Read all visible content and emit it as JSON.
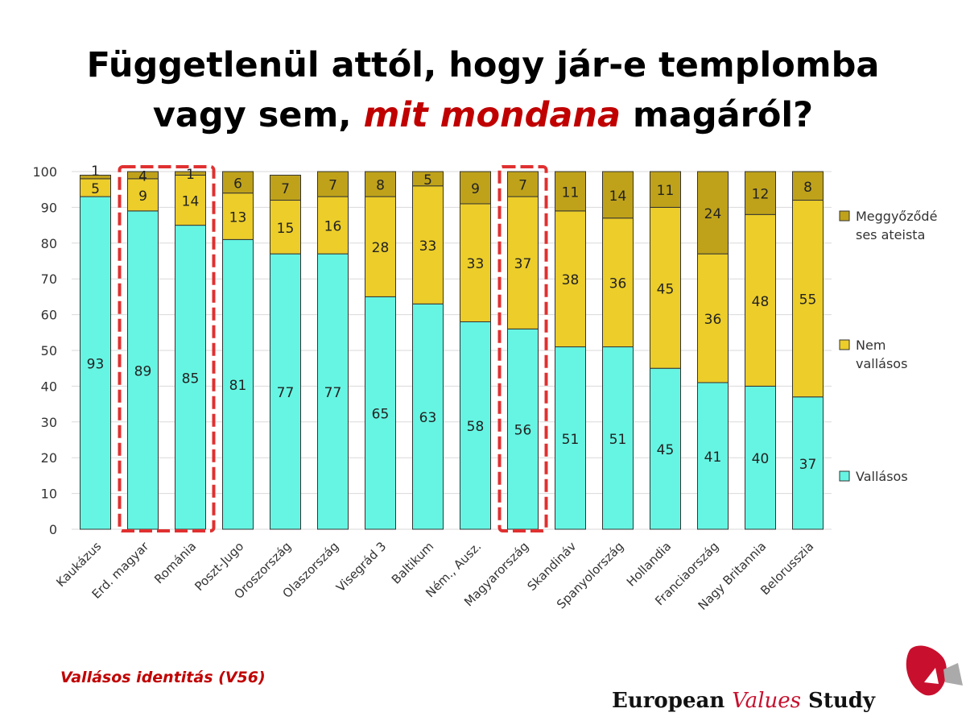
{
  "title": {
    "line1": "Függetlenül attól, hogy jár-e templomba",
    "line2_pre": "vagy sem, ",
    "line2_highlight": "mit mondana",
    "line2_post": " magáról?"
  },
  "note": "Vallásos identitás (V56)",
  "brand": {
    "word1": "European",
    "word2": "Values",
    "word3": "Study"
  },
  "colors": {
    "vallasos": "#66f5e3",
    "nem": "#eccd2a",
    "ateista": "#bfa21a",
    "highlight": "#e03030",
    "logo": "#c8102e"
  },
  "chart_data": {
    "type": "bar",
    "stacked": true,
    "categories": [
      "Kaukázus",
      "Erd. magyar",
      "Románia",
      "Poszt-Jugo",
      "Oroszország",
      "Olaszország",
      "Visegrád 3",
      "Baltikum",
      "Ném., Ausz.",
      "Magyarország",
      "Skandináv",
      "Spanyolország",
      "Hollandia",
      "Franciaország",
      "Nagy Britannia",
      "Belorusszia"
    ],
    "series": [
      {
        "name": "Vallásos",
        "values": [
          93,
          89,
          85,
          81,
          77,
          77,
          65,
          63,
          58,
          56,
          51,
          51,
          45,
          41,
          40,
          37
        ]
      },
      {
        "name": "Nem vallásos",
        "values": [
          5,
          9,
          14,
          13,
          15,
          16,
          28,
          33,
          33,
          37,
          38,
          36,
          45,
          36,
          48,
          55
        ]
      },
      {
        "name": "Meggyőződéses ateista",
        "values": [
          1,
          4,
          1,
          6,
          7,
          7,
          8,
          5,
          9,
          7,
          11,
          14,
          11,
          24,
          12,
          8
        ]
      }
    ],
    "legend": [
      "Meggyőződé",
      "ses ateista",
      "Nem",
      "vallásos",
      "Vallásos"
    ],
    "legend_placement": "right",
    "yticks": [
      "0",
      "10",
      "20",
      "30",
      "40",
      "50",
      "60",
      "70",
      "80",
      "90",
      "100"
    ],
    "ylim": [
      0,
      100
    ],
    "grid": true,
    "highlighted_categories": [
      "Erd. magyar",
      "Románia",
      "Magyarország"
    ]
  }
}
